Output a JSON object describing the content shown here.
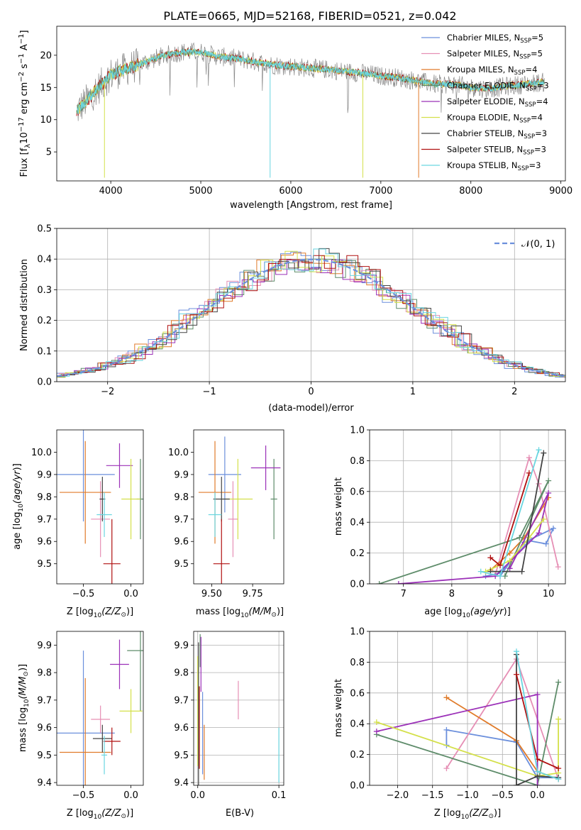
{
  "figure_title": "PLATE=0665, MJD=52168, FIBERID=0521, z=0.042",
  "colors": {
    "Chabrier MILES": "#6b8fdc",
    "Salpeter MILES": "#e68fb5",
    "Kroupa MILES": "#e07b2a",
    "Chabrier ELODIE": "#5e8c6a",
    "Salpeter ELODIE": "#9b30b8",
    "Kroupa ELODIE": "#d4e04a",
    "Chabrier STELIB": "#444444",
    "Salpeter STELIB": "#b01010",
    "Kroupa STELIB": "#6ad6e0"
  },
  "chart_data": [
    {
      "id": "spectrum",
      "type": "line",
      "title": "",
      "xlabel": "wavelength [Angstrom, rest frame]",
      "ylabel": "Flux [f",
      "xlim": [
        3400,
        9050
      ],
      "ylim": [
        0.5,
        24.5
      ],
      "xticks": [
        4000,
        5000,
        6000,
        7000,
        8000,
        9000
      ],
      "yticks": [
        5,
        10,
        15,
        20
      ],
      "legend_position": "top-right",
      "legend": [
        {
          "label": "Chabrier MILES, N",
          "nssp": "=5"
        },
        {
          "label": "Salpeter MILES, N",
          "nssp": "=5"
        },
        {
          "label": "Kroupa MILES, N",
          "nssp": "=4"
        },
        {
          "label": "Chabrier ELODIE, N",
          "nssp": "=3"
        },
        {
          "label": "Salpeter ELODIE, N",
          "nssp": "=4"
        },
        {
          "label": "Kroupa ELODIE, N",
          "nssp": "=4"
        },
        {
          "label": "Chabrier STELIB, N",
          "nssp": "=3"
        },
        {
          "label": "Salpeter STELIB, N",
          "nssp": "=3"
        },
        {
          "label": "Kroupa STELIB, N",
          "nssp": "=3"
        }
      ],
      "data_trend": {
        "x": [
          3600,
          3800,
          4000,
          4200,
          4400,
          4600,
          4800,
          5000,
          5200,
          5400,
          5600,
          5800,
          6000,
          6200,
          6400,
          6600,
          6800,
          7000,
          7200,
          7400,
          7600,
          7800,
          8000,
          8200,
          8400,
          8600,
          8800
        ],
        "y": [
          11,
          14,
          17,
          18,
          19,
          20,
          20.5,
          20.5,
          19.8,
          19.5,
          19.0,
          18.5,
          18.3,
          18.0,
          17.8,
          17.5,
          17.2,
          16.8,
          16.5,
          16.0,
          15.5,
          15.5,
          15.0,
          14.8,
          15.2,
          15.5,
          15.8
        ]
      },
      "dropouts": [
        {
          "x": 3930,
          "y": 1
        },
        {
          "x": 5770,
          "y": 1
        },
        {
          "x": 6800,
          "y": 1
        },
        {
          "x": 7420,
          "y": 1
        }
      ]
    },
    {
      "id": "residuals",
      "type": "histogram",
      "title": "",
      "xlabel": "(data-model)/error",
      "ylabel": "Normed distribution",
      "xlim": [
        -2.5,
        2.5
      ],
      "ylim": [
        0,
        0.5
      ],
      "xticks": [
        -2,
        -1,
        0,
        1,
        2
      ],
      "yticks": [
        0.0,
        0.1,
        0.2,
        0.3,
        0.4,
        0.5
      ],
      "grid": true,
      "legend_position": "top-right",
      "legend": "𝒩(0, 1)",
      "gaussian_mean": 0,
      "gaussian_sigma": 1
    },
    {
      "id": "age_vs_Z",
      "type": "scatter",
      "title": "",
      "xlabel": "Z [log",
      "ylabel": "age  [log",
      "xlim": [
        -0.78,
        0.13
      ],
      "ylim": [
        9.41,
        10.1
      ],
      "xticks": [
        -0.5,
        0.0
      ],
      "yticks": [
        9.5,
        9.6,
        9.7,
        9.8,
        9.9,
        10.0
      ],
      "points": [
        {
          "series": "Chabrier MILES",
          "x": -0.5,
          "y": 9.9,
          "xerr": 0.33,
          "yerr": 0.21
        },
        {
          "series": "Salpeter MILES",
          "x": -0.32,
          "y": 9.7,
          "xerr": 0.1,
          "yerr": 0.17
        },
        {
          "series": "Kroupa MILES",
          "x": -0.48,
          "y": 9.82,
          "xerr": 0.27,
          "yerr": 0.23
        },
        {
          "series": "Chabrier ELODIE",
          "x": 0.1,
          "y": 9.79,
          "xerr": 0.04,
          "yerr": 0.18
        },
        {
          "series": "Salpeter ELODIE",
          "x": -0.12,
          "y": 9.94,
          "xerr": 0.14,
          "yerr": 0.1
        },
        {
          "series": "Kroupa ELODIE",
          "x": 0.0,
          "y": 9.79,
          "xerr": 0.1,
          "yerr": 0.18
        },
        {
          "series": "Chabrier STELIB",
          "x": -0.3,
          "y": 9.79,
          "xerr": 0.03,
          "yerr": 0.1
        },
        {
          "series": "Salpeter STELIB",
          "x": -0.2,
          "y": 9.5,
          "xerr": 0.09,
          "yerr": 0.2
        },
        {
          "series": "Kroupa STELIB",
          "x": -0.28,
          "y": 9.72,
          "xerr": 0.08,
          "yerr": 0.1
        }
      ]
    },
    {
      "id": "age_vs_mass",
      "type": "scatter",
      "title": "",
      "xlabel": "mass [log",
      "ylabel": "",
      "xlim": [
        9.39,
        9.94
      ],
      "ylim": [
        9.41,
        10.1
      ],
      "xticks": [
        9.5,
        9.75
      ],
      "yticks": [
        9.5,
        9.6,
        9.7,
        9.8,
        9.9,
        10.0
      ],
      "points": [
        {
          "series": "Chabrier MILES",
          "x": 9.58,
          "y": 9.9,
          "xerr": 0.1,
          "yerr": 0.17
        },
        {
          "series": "Salpeter MILES",
          "x": 9.63,
          "y": 9.7,
          "xerr": 0.03,
          "yerr": 0.17
        },
        {
          "series": "Kroupa MILES",
          "x": 9.52,
          "y": 9.82,
          "xerr": 0.1,
          "yerr": 0.23
        },
        {
          "series": "Chabrier ELODIE",
          "x": 9.88,
          "y": 9.79,
          "xerr": 0.02,
          "yerr": 0.18
        },
        {
          "series": "Salpeter ELODIE",
          "x": 9.83,
          "y": 9.93,
          "xerr": 0.09,
          "yerr": 0.1
        },
        {
          "series": "Kroupa ELODIE",
          "x": 9.66,
          "y": 9.79,
          "xerr": 0.09,
          "yerr": 0.18
        },
        {
          "series": "Chabrier STELIB",
          "x": 9.56,
          "y": 9.79,
          "xerr": 0.05,
          "yerr": 0.1
        },
        {
          "series": "Salpeter STELIB",
          "x": 9.56,
          "y": 9.5,
          "xerr": 0.05,
          "yerr": 0.2
        },
        {
          "series": "Kroupa STELIB",
          "x": 9.52,
          "y": 9.72,
          "xerr": 0.04,
          "yerr": 0.1
        }
      ]
    },
    {
      "id": "weight_vs_age",
      "type": "line",
      "title": "",
      "xlabel": "age  [log",
      "ylabel": "mass weight",
      "xlim": [
        6.3,
        10.35
      ],
      "ylim": [
        0,
        1
      ],
      "xticks": [
        7,
        8,
        9,
        10
      ],
      "yticks": [
        0.0,
        0.2,
        0.4,
        0.6,
        0.8,
        1.0
      ],
      "grid": true,
      "series": [
        {
          "name": "Chabrier MILES",
          "x": [
            8.7,
            9.0,
            9.6,
            9.95,
            10.1,
            9.5,
            9.0
          ],
          "y": [
            0.05,
            0.07,
            0.28,
            0.26,
            0.36,
            0.27,
            0.05
          ]
        },
        {
          "name": "Salpeter MILES",
          "x": [
            8.9,
            9.6,
            9.8,
            10.2
          ],
          "y": [
            0.06,
            0.82,
            0.65,
            0.11
          ]
        },
        {
          "name": "Kroupa MILES",
          "x": [
            8.8,
            9.2,
            9.5,
            10.0
          ],
          "y": [
            0.09,
            0.2,
            0.3,
            0.56
          ]
        },
        {
          "name": "Chabrier ELODIE",
          "x": [
            6.5,
            9.4,
            10.0,
            9.1
          ],
          "y": [
            0.0,
            0.3,
            0.67,
            0.05
          ]
        },
        {
          "name": "Salpeter ELODIE",
          "x": [
            6.9,
            8.9,
            9.8,
            10.0,
            9.2
          ],
          "y": [
            0.0,
            0.05,
            0.33,
            0.59,
            0.1
          ]
        },
        {
          "name": "Kroupa ELODIE",
          "x": [
            8.7,
            9.2,
            9.6,
            9.9
          ],
          "y": [
            0.08,
            0.15,
            0.3,
            0.42
          ]
        },
        {
          "name": "Chabrier STELIB",
          "x": [
            8.8,
            9.45,
            9.9
          ],
          "y": [
            0.08,
            0.08,
            0.85
          ]
        },
        {
          "name": "Salpeter STELIB",
          "x": [
            8.8,
            9.0,
            9.6
          ],
          "y": [
            0.17,
            0.12,
            0.72
          ]
        },
        {
          "name": "Kroupa STELIB",
          "x": [
            8.6,
            9.0,
            9.8
          ],
          "y": [
            0.08,
            0.05,
            0.87
          ]
        }
      ]
    },
    {
      "id": "mass_vs_Z",
      "type": "scatter",
      "title": "",
      "xlabel": "Z [log",
      "ylabel": "mass [log",
      "xlim": [
        -0.78,
        0.13
      ],
      "ylim": [
        9.39,
        9.95
      ],
      "xticks": [
        -0.5,
        0.0
      ],
      "yticks": [
        9.4,
        9.5,
        9.6,
        9.7,
        9.8,
        9.9
      ],
      "points": [
        {
          "series": "Chabrier MILES",
          "x": -0.5,
          "y": 9.58,
          "xerr": 0.33,
          "yerr": 0.3
        },
        {
          "series": "Salpeter MILES",
          "x": -0.32,
          "y": 9.63,
          "xerr": 0.1,
          "yerr": 0.05
        },
        {
          "series": "Kroupa MILES",
          "x": -0.48,
          "y": 9.51,
          "xerr": 0.27,
          "yerr": 0.27
        },
        {
          "series": "Chabrier ELODIE",
          "x": 0.1,
          "y": 9.88,
          "xerr": 0.14,
          "yerr": 0.22
        },
        {
          "series": "Salpeter ELODIE",
          "x": -0.12,
          "y": 9.83,
          "xerr": 0.1,
          "yerr": 0.09
        },
        {
          "series": "Kroupa ELODIE",
          "x": 0.0,
          "y": 9.66,
          "xerr": 0.12,
          "yerr": 0.08
        },
        {
          "series": "Chabrier STELIB",
          "x": -0.3,
          "y": 9.56,
          "xerr": 0.1,
          "yerr": 0.05
        },
        {
          "series": "Salpeter STELIB",
          "x": -0.2,
          "y": 9.55,
          "xerr": 0.09,
          "yerr": 0.05
        },
        {
          "series": "Kroupa STELIB",
          "x": -0.28,
          "y": 9.5,
          "xerr": 0.03,
          "yerr": 0.07
        }
      ]
    },
    {
      "id": "mass_vs_EBV",
      "type": "scatter",
      "title": "",
      "xlabel": "E(B-V)",
      "ylabel": "",
      "xlim": [
        -0.005,
        0.106
      ],
      "ylim": [
        9.39,
        9.95
      ],
      "xticks": [
        0.0,
        0.1
      ],
      "yticks": [
        9.4,
        9.5,
        9.6,
        9.7,
        9.8,
        9.9
      ],
      "grid": true,
      "points": [
        {
          "series": "Chabrier MILES",
          "x": 0.006,
          "y": 9.58,
          "xerr": 0,
          "yerr": 0.15
        },
        {
          "series": "Salpeter MILES",
          "x": 0.05,
          "y": 9.7,
          "xerr": 0,
          "yerr": 0.07
        },
        {
          "series": "Kroupa MILES",
          "x": 0.008,
          "y": 9.51,
          "xerr": 0,
          "yerr": 0.1
        },
        {
          "series": "Chabrier ELODIE",
          "x": 0.003,
          "y": 9.88,
          "xerr": 0,
          "yerr": 0.06
        },
        {
          "series": "Salpeter ELODIE",
          "x": 0.004,
          "y": 9.83,
          "xerr": 0,
          "yerr": 0.1
        },
        {
          "series": "Kroupa ELODIE",
          "x": 0.0,
          "y": 9.66,
          "xerr": 0,
          "yerr": 0.2
        },
        {
          "series": "Chabrier STELIB",
          "x": 0.001,
          "y": 9.56,
          "xerr": 0,
          "yerr": 0.35
        },
        {
          "series": "Salpeter STELIB",
          "x": 0.002,
          "y": 9.6,
          "xerr": 0,
          "yerr": 0.15
        },
        {
          "series": "Kroupa STELIB",
          "x": 0.1,
          "y": 9.5,
          "xerr": 0,
          "yerr": 0.1
        }
      ]
    },
    {
      "id": "weight_vs_Z",
      "type": "line",
      "title": "",
      "xlabel": "Z [log",
      "ylabel": "mass weight",
      "xlim": [
        -2.4,
        0.4
      ],
      "ylim": [
        0,
        1
      ],
      "xticks": [
        -2.0,
        -1.5,
        -1.0,
        -0.5,
        0.0
      ],
      "yticks": [
        0.0,
        0.2,
        0.4,
        0.6,
        0.8,
        1.0
      ],
      "grid": true,
      "series": [
        {
          "name": "Chabrier MILES",
          "x": [
            -1.3,
            -1.3,
            -0.3,
            0.0,
            0.3
          ],
          "y": [
            0.26,
            0.36,
            0.28,
            0.05,
            0.05
          ]
        },
        {
          "name": "Salpeter MILES",
          "x": [
            -1.3,
            -0.3,
            0.3
          ],
          "y": [
            0.11,
            0.82,
            0.04
          ]
        },
        {
          "name": "Kroupa MILES",
          "x": [
            -1.3,
            -0.3,
            0.0,
            0.3
          ],
          "y": [
            0.57,
            0.29,
            0.09,
            0.04
          ]
        },
        {
          "name": "Chabrier ELODIE",
          "x": [
            -2.3,
            0.0,
            0.3
          ],
          "y": [
            0.33,
            0.0,
            0.67
          ]
        },
        {
          "name": "Salpeter ELODIE",
          "x": [
            -2.3,
            0.0,
            0.0
          ],
          "y": [
            0.35,
            0.59,
            0.0
          ]
        },
        {
          "name": "Kroupa ELODIE",
          "x": [
            -2.3,
            0.0,
            0.3,
            0.3
          ],
          "y": [
            0.41,
            0.06,
            0.08,
            0.43
          ]
        },
        {
          "name": "Chabrier STELIB",
          "x": [
            -0.3,
            -0.3,
            0.0,
            0.3
          ],
          "y": [
            0.85,
            0.0,
            0.06,
            0.05
          ]
        },
        {
          "name": "Salpeter STELIB",
          "x": [
            -0.3,
            0.0,
            0.3
          ],
          "y": [
            0.72,
            0.17,
            0.11
          ]
        },
        {
          "name": "Kroupa STELIB",
          "x": [
            -0.3,
            0.0,
            0.3
          ],
          "y": [
            0.87,
            0.09,
            0.04
          ]
        }
      ]
    }
  ]
}
